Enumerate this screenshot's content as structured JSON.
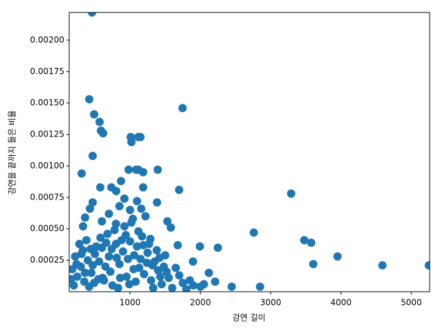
{
  "chart_data": {
    "type": "scatter",
    "xlabel": "강연 길이",
    "ylabel": "강연을 끝까지 들은 비율",
    "color": "#1f77b4",
    "xlim": [
      135,
      5260
    ],
    "ylim": [
      0,
      0.00222
    ],
    "xticks": [
      1000,
      2000,
      3000,
      4000,
      5000
    ],
    "yticks": [
      0.00025,
      {
        "value": 0.0005,
        "label": "0.00050"
      },
      0.00075,
      {
        "value": 0.001,
        "label": "0.00100"
      },
      0.00125,
      {
        "value": 0.0015,
        "label": "0.00150"
      },
      0.00175,
      {
        "value": 0.002,
        "label": "0.00200"
      }
    ],
    "x": [
      460,
      420,
      490,
      567,
      587,
      617,
      469,
      1747,
      1010,
      1020,
      1118,
      1148,
      312,
      980,
      1088,
      1118,
      1187,
      1394,
      1698,
      3291,
      2760,
      3478,
      3576,
      3606,
      3950,
      4589,
      5248,
      1993,
      2249,
      1531,
      1580,
      1678,
      1895,
      2121,
      2210,
      2446,
      2849,
      734,
      577,
      803,
      872,
      430,
      361,
      332,
      469,
      1384,
      1187,
      200,
      250,
      300,
      350,
      400,
      450,
      500,
      550,
      600,
      650,
      700,
      750,
      800,
      850,
      900,
      950,
      1000,
      1050,
      1100,
      1150,
      1200,
      1250,
      1300,
      1350,
      1400,
      1450,
      1500,
      1550,
      1600,
      1650,
      1700,
      1750,
      1800,
      1850,
      1900,
      2000,
      2050,
      180,
      220,
      280,
      330,
      380,
      420,
      470,
      520,
      580,
      630,
      680,
      720,
      780,
      830,
      880,
      920,
      970,
      1020,
      1080,
      1120,
      1170,
      1220,
      1270,
      1320,
      1380,
      1430,
      1480,
      1520,
      160,
      240,
      310,
      360,
      440,
      490,
      560,
      610,
      660,
      740,
      810,
      860,
      940,
      990,
      1060,
      1130,
      1190,
      1240,
      1290,
      1330,
      1420,
      700,
      850,
      1000,
      1100,
      1160,
      600,
      920,
      1040,
      800
    ],
    "y": [
      0.00222,
      0.00153,
      0.00141,
      0.00135,
      0.00128,
      0.00126,
      0.00108,
      0.00146,
      0.00123,
      0.00119,
      0.00123,
      0.00123,
      0.00094,
      0.00097,
      0.00097,
      0.00097,
      0.00095,
      0.00097,
      0.00081,
      0.00078,
      0.00047,
      0.00041,
      0.00039,
      0.00022,
      0.00028,
      0.00021,
      0.00021,
      0.00036,
      0.00035,
      0.00056,
      0.00051,
      0.00037,
      0.00024,
      0.00015,
      8e-05,
      4e-05,
      4e-05,
      0.00083,
      0.00083,
      0.0008,
      0.00088,
      0.00066,
      0.00059,
      0.00052,
      0.00071,
      0.00071,
      0.00083,
      5e-05,
      0.00012,
      0.0002,
      8e-05,
      0.00025,
      0.00015,
      0.0003,
      0.0001,
      0.00035,
      0.0002,
      0.00028,
      5e-05,
      0.00038,
      0.00022,
      0.00032,
      0.00012,
      0.0004,
      0.00018,
      0.00036,
      0.00026,
      0.00014,
      0.00031,
      9e-05,
      0.00024,
      0.00017,
      6e-05,
      0.00029,
      0.00011,
      3e-05,
      0.00019,
      0.00013,
      7e-05,
      2e-05,
      9e-05,
      5e-05,
      4e-05,
      6e-05,
      0.00018,
      0.00028,
      0.00038,
      0.00033,
      0.00041,
      4e-05,
      0.00021,
      0.00036,
      0.00043,
      9e-05,
      0.00046,
      0.00016,
      0.00049,
      3e-05,
      0.00041,
      0.00052,
      0.00026,
      0.00055,
      8e-05,
      0.00048,
      0.00044,
      0.0006,
      0.00038,
      0.00021,
      0.00033,
      0.00012,
      0.0002,
      0.00016,
      0.0001,
      0.00022,
      0.0003,
      0.00015,
      0.00034,
      7e-05,
      0.00024,
      0.00011,
      0.00039,
      0.00034,
      0.00027,
      0.00011,
      0.00045,
      6e-05,
      0.00029,
      0.00019,
      0.00037,
      0.00023,
      0.00042,
      3e-05,
      0.00027,
      0.00062,
      0.00068,
      0.00065,
      0.00072,
      0.00066,
      0.00056,
      0.00074,
      0.00058,
      0.00054
    ]
  }
}
